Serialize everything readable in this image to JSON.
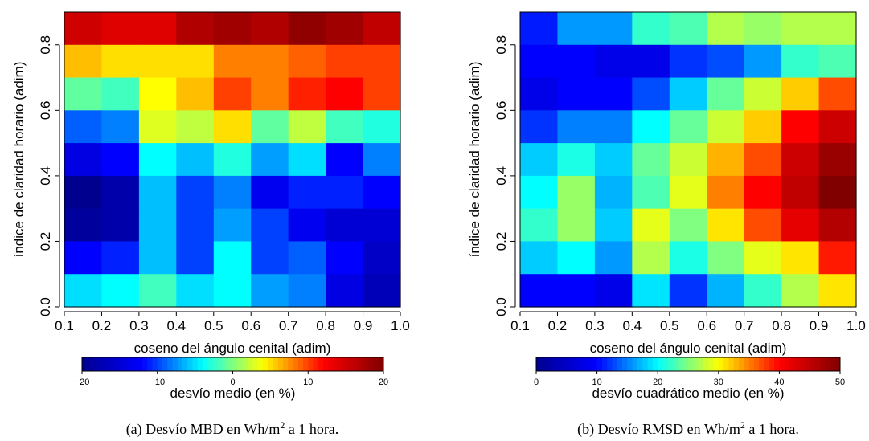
{
  "chart_data": [
    {
      "type": "heatmap",
      "xlabel": "coseno del ángulo cenital (adim)",
      "ylabel": "índice de claridad horario (adim)",
      "x_edges": [
        0.1,
        0.2,
        0.3,
        0.4,
        0.5,
        0.6,
        0.7,
        0.8,
        0.9,
        1.0
      ],
      "y_edges": [
        0.0,
        0.1,
        0.2,
        0.3,
        0.4,
        0.5,
        0.6,
        0.7,
        0.8,
        0.9
      ],
      "xticks": [
        "0.1",
        "0.2",
        "0.3",
        "0.4",
        "0.5",
        "0.6",
        "0.7",
        "0.8",
        "0.9",
        "1.0"
      ],
      "yticks": [
        "0.0",
        "0.2",
        "0.4",
        "0.6",
        "0.8"
      ],
      "ytick_values": [
        0.0,
        0.2,
        0.4,
        0.6,
        0.8
      ],
      "xlim": [
        0.1,
        1.0
      ],
      "ylim": [
        0.0,
        0.9
      ],
      "values_by_row_top_to_bottom": [
        [
          15,
          14,
          14,
          17,
          18,
          17,
          19,
          18,
          16
        ],
        [
          6,
          5,
          5,
          5,
          8,
          8,
          9,
          10,
          10
        ],
        [
          -1,
          -2,
          4,
          6,
          10,
          8,
          11,
          12,
          10
        ],
        [
          -9,
          -8,
          3,
          2,
          5,
          -1,
          2,
          -2,
          -3
        ],
        [
          -14,
          -12,
          -4,
          -6,
          -3,
          -7,
          -5,
          -12,
          -8
        ],
        [
          -20,
          -18,
          -6,
          -10,
          -8,
          -13,
          -11,
          -11,
          -12
        ],
        [
          -19,
          -18,
          -6,
          -10,
          -7,
          -10,
          -13,
          -15,
          -15
        ],
        [
          -12,
          -11,
          -6,
          -10,
          -4,
          -10,
          -9,
          -12,
          -16
        ],
        [
          -5,
          -4,
          -2,
          -5,
          -4,
          -7,
          -8,
          -14,
          -17
        ]
      ],
      "vmin": -20,
      "vmax": 20,
      "colorbar_ticks": [
        -20,
        -10,
        0,
        10,
        20
      ],
      "colorbar_tick_labels": [
        "−20",
        "−10",
        "0",
        "10",
        "20"
      ],
      "colorbar_label": "desvío medio (en %)",
      "caption": {
        "prefix": "(a) Desvío MBD en Wh/m",
        "sup": "2",
        "suffix": " a 1 hora."
      },
      "colors": {
        "scale": [
          "#00008f",
          "#0000ff",
          "#00ffff",
          "#ffff00",
          "#ff0000",
          "#800000"
        ]
      }
    },
    {
      "type": "heatmap",
      "xlabel": "coseno del ángulo cenital (adim)",
      "ylabel": "índice de claridad horario (adim)",
      "x_edges": [
        0.1,
        0.2,
        0.3,
        0.4,
        0.5,
        0.6,
        0.7,
        0.8,
        0.9,
        1.0
      ],
      "y_edges": [
        0.0,
        0.1,
        0.2,
        0.3,
        0.4,
        0.5,
        0.6,
        0.7,
        0.8,
        0.9
      ],
      "xticks": [
        "0.1",
        "0.2",
        "0.3",
        "0.4",
        "0.5",
        "0.6",
        "0.7",
        "0.8",
        "0.9",
        "1.0"
      ],
      "yticks": [
        "0.0",
        "0.2",
        "0.4",
        "0.6",
        "0.8"
      ],
      "ytick_values": [
        0.0,
        0.2,
        0.4,
        0.6,
        0.8
      ],
      "xlim": [
        0.1,
        1.0
      ],
      "ylim": [
        0.0,
        0.9
      ],
      "values_by_row_top_to_bottom": [
        [
          11,
          16,
          16,
          22,
          23,
          27,
          26,
          27,
          27
        ],
        [
          10,
          10,
          8,
          8,
          12,
          13,
          16,
          22,
          23
        ],
        [
          8,
          10,
          10,
          13,
          18,
          24,
          28,
          32,
          37
        ],
        [
          12,
          15,
          15,
          20,
          24,
          28,
          32,
          40,
          44
        ],
        [
          18,
          21,
          18,
          24,
          28,
          33,
          37,
          44,
          48
        ],
        [
          20,
          26,
          17,
          23,
          29,
          35,
          40,
          45,
          50
        ],
        [
          22,
          26,
          18,
          29,
          25,
          31,
          37,
          42,
          46
        ],
        [
          18,
          20,
          16,
          27,
          21,
          25,
          29,
          31,
          39
        ],
        [
          10,
          10,
          8,
          19,
          12,
          17,
          22,
          27,
          31
        ]
      ],
      "vmin": 0,
      "vmax": 50,
      "colorbar_ticks": [
        0,
        10,
        20,
        30,
        40,
        50
      ],
      "colorbar_tick_labels": [
        "0",
        "10",
        "20",
        "30",
        "40",
        "50"
      ],
      "colorbar_label": "desvío cuadrático medio (en %)",
      "caption": {
        "prefix": "(b) Desvío RMSD en Wh/m",
        "sup": "2",
        "suffix": " a 1 hora."
      },
      "colors": {
        "scale": [
          "#00008f",
          "#0000ff",
          "#00ffff",
          "#ffff00",
          "#ff0000",
          "#800000"
        ]
      }
    }
  ]
}
